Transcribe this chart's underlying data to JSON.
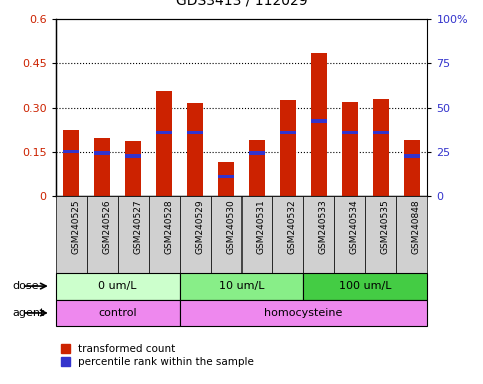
{
  "title": "GDS3413 / 112029",
  "categories": [
    "GSM240525",
    "GSM240526",
    "GSM240527",
    "GSM240528",
    "GSM240529",
    "GSM240530",
    "GSM240531",
    "GSM240532",
    "GSM240533",
    "GSM240534",
    "GSM240535",
    "GSM240848"
  ],
  "red_values": [
    0.225,
    0.195,
    0.185,
    0.355,
    0.315,
    0.115,
    0.19,
    0.325,
    0.485,
    0.32,
    0.33,
    0.19
  ],
  "blue_values": [
    0.15,
    0.145,
    0.135,
    0.215,
    0.215,
    0.065,
    0.145,
    0.215,
    0.255,
    0.215,
    0.215,
    0.135
  ],
  "ylim_left": [
    0,
    0.6
  ],
  "ylim_right": [
    0,
    100
  ],
  "yticks_left": [
    0,
    0.15,
    0.3,
    0.45,
    0.6
  ],
  "yticks_right": [
    0,
    25,
    50,
    75,
    100
  ],
  "ytick_labels_left": [
    "0",
    "0.15",
    "0.30",
    "0.45",
    "0.6"
  ],
  "ytick_labels_right": [
    "0",
    "25",
    "50",
    "75",
    "100%"
  ],
  "red_color": "#cc2200",
  "blue_color": "#3333cc",
  "bar_width": 0.5,
  "dose_labels": [
    "0 um/L",
    "10 um/L",
    "100 um/L"
  ],
  "dose_starts": [
    0,
    4,
    8
  ],
  "dose_ends": [
    4,
    8,
    12
  ],
  "dose_colors": [
    "#ccffcc",
    "#88ee88",
    "#44cc44"
  ],
  "agent_labels": [
    "control",
    "homocysteine"
  ],
  "agent_starts": [
    0,
    4
  ],
  "agent_ends": [
    4,
    12
  ],
  "agent_color": "#ee88ee",
  "dose_row_label": "dose",
  "agent_row_label": "agent",
  "legend_red_label": "transformed count",
  "legend_blue_label": "percentile rank within the sample",
  "grid_yticks": [
    0.15,
    0.3,
    0.45
  ],
  "xtick_bg_color": "#d0d0d0",
  "plot_bg": "white",
  "fig_bg": "white"
}
